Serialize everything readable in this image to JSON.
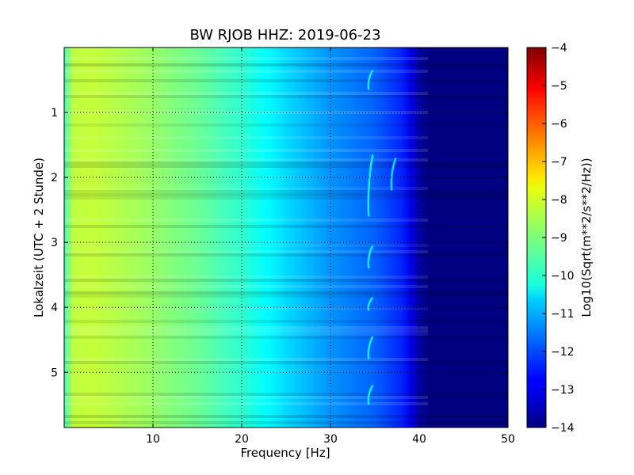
{
  "chart_data": {
    "type": "heatmap",
    "title": "BW RJOB HHZ: 2019-06-23",
    "xlabel": "Frequency [Hz]",
    "ylabel": "Lokalzeit (UTC + 2 Stunde)",
    "xlim": [
      0,
      50
    ],
    "ylim": [
      5.85,
      0
    ],
    "y_inverted": true,
    "x_ticks": [
      10,
      20,
      30,
      40,
      50
    ],
    "x_tick_labels": [
      "10",
      "20",
      "30",
      "40",
      "50"
    ],
    "y_ticks": [
      1,
      2,
      3,
      4,
      5
    ],
    "y_tick_labels": [
      "1",
      "2",
      "3",
      "4",
      "5"
    ],
    "grid": true,
    "colormap": "jet",
    "colorbar": {
      "label": "Log10(Sqrt(m**2/s**2/Hz))",
      "range": [
        -14,
        -4
      ],
      "ticks": [
        -4,
        -5,
        -6,
        -7,
        -8,
        -9,
        -10,
        -11,
        -12,
        -13,
        -14
      ],
      "tick_labels": [
        "−4",
        "−5",
        "−6",
        "−7",
        "−8",
        "−9",
        "−10",
        "−11",
        "−12",
        "−13",
        "−14"
      ]
    },
    "profile": {
      "frequency_hz": [
        0,
        1,
        3,
        8,
        15,
        20,
        25,
        30,
        35,
        38,
        40,
        41,
        50
      ],
      "log10_psd": [
        -9.6,
        -8.4,
        -8.3,
        -8.6,
        -9.2,
        -9.8,
        -10.6,
        -11.3,
        -11.8,
        -12.4,
        -13.6,
        -14,
        -14
      ]
    },
    "features": [
      {
        "type": "narrowband_line",
        "frequency_hz": 34.3,
        "log10_psd": -10.2
      },
      {
        "type": "narrowband_line",
        "frequency_hz": 36.9,
        "log10_psd": -10.4
      }
    ]
  }
}
